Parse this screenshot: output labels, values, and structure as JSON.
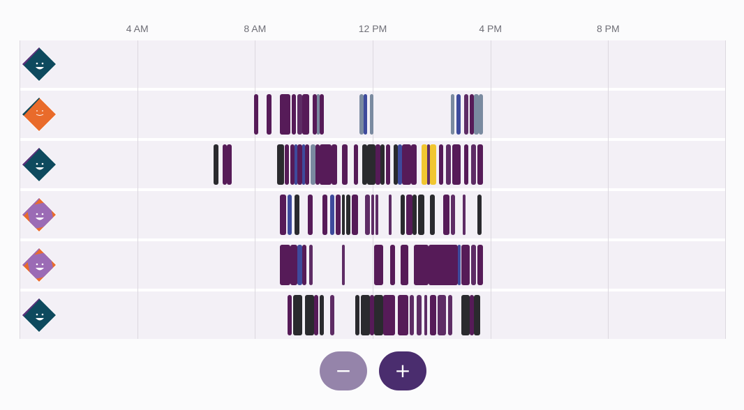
{
  "timeline": {
    "hour_labels": [
      {
        "hour": 4,
        "label": "4 AM"
      },
      {
        "hour": 8,
        "label": "8 AM"
      },
      {
        "hour": 12,
        "label": "12 PM"
      },
      {
        "hour": 16,
        "label": "4 PM"
      },
      {
        "hour": 20,
        "label": "8 PM"
      }
    ],
    "colors": {
      "plum": "#561b58",
      "purple": "#5e2c65",
      "dark": "#2a2a2e",
      "blue": "#3e4a9c",
      "slate": "#7a8aa0",
      "yellow": "#f1c630"
    },
    "rows": [
      {
        "avatar": {
          "base": "#0e4a5e",
          "accent": "#5a2f7a",
          "face": "teal"
        },
        "segments": []
      },
      {
        "avatar": {
          "base": "#e96b2b",
          "accent": "#0e4a5e",
          "face": "orange"
        },
        "segments": [
          {
            "start": 7.98,
            "end": 8.12,
            "color": "plum"
          },
          {
            "start": 8.4,
            "end": 8.55,
            "color": "plum"
          },
          {
            "start": 8.85,
            "end": 9.2,
            "color": "plum"
          },
          {
            "start": 9.25,
            "end": 9.4,
            "color": "plum"
          },
          {
            "start": 9.45,
            "end": 9.6,
            "color": "purple"
          },
          {
            "start": 9.6,
            "end": 9.85,
            "color": "plum"
          },
          {
            "start": 9.95,
            "end": 10.1,
            "color": "plum"
          },
          {
            "start": 10.1,
            "end": 10.2,
            "color": "slate"
          },
          {
            "start": 10.2,
            "end": 10.35,
            "color": "plum"
          },
          {
            "start": 11.55,
            "end": 11.7,
            "color": "slate"
          },
          {
            "start": 11.7,
            "end": 11.8,
            "color": "blue"
          },
          {
            "start": 11.9,
            "end": 12.02,
            "color": "slate"
          },
          {
            "start": 14.65,
            "end": 14.78,
            "color": "slate"
          },
          {
            "start": 14.85,
            "end": 14.98,
            "color": "blue"
          },
          {
            "start": 15.1,
            "end": 15.25,
            "color": "purple"
          },
          {
            "start": 15.3,
            "end": 15.45,
            "color": "plum"
          },
          {
            "start": 15.45,
            "end": 15.6,
            "color": "slate"
          },
          {
            "start": 15.6,
            "end": 15.75,
            "color": "slate"
          }
        ]
      },
      {
        "avatar": {
          "base": "#0e4a5e",
          "accent": "#5a2f7a",
          "face": "teal"
        },
        "segments": [
          {
            "start": 6.6,
            "end": 6.75,
            "color": "dark"
          },
          {
            "start": 6.9,
            "end": 7.05,
            "color": "plum"
          },
          {
            "start": 7.05,
            "end": 7.2,
            "color": "plum"
          },
          {
            "start": 8.75,
            "end": 9.0,
            "color": "dark"
          },
          {
            "start": 9.0,
            "end": 9.15,
            "color": "plum"
          },
          {
            "start": 9.2,
            "end": 9.35,
            "color": "plum"
          },
          {
            "start": 9.35,
            "end": 9.45,
            "color": "blue"
          },
          {
            "start": 9.45,
            "end": 9.6,
            "color": "plum"
          },
          {
            "start": 9.6,
            "end": 9.7,
            "color": "blue"
          },
          {
            "start": 9.7,
            "end": 9.85,
            "color": "plum"
          },
          {
            "start": 9.9,
            "end": 10.05,
            "color": "slate"
          },
          {
            "start": 10.05,
            "end": 10.2,
            "color": "plum"
          },
          {
            "start": 10.2,
            "end": 10.6,
            "color": "plum"
          },
          {
            "start": 10.6,
            "end": 10.8,
            "color": "plum"
          },
          {
            "start": 10.95,
            "end": 11.15,
            "color": "plum"
          },
          {
            "start": 11.35,
            "end": 11.5,
            "color": "plum"
          },
          {
            "start": 11.65,
            "end": 11.8,
            "color": "dark"
          },
          {
            "start": 11.8,
            "end": 12.1,
            "color": "dark"
          },
          {
            "start": 12.1,
            "end": 12.25,
            "color": "plum"
          },
          {
            "start": 12.25,
            "end": 12.4,
            "color": "dark"
          },
          {
            "start": 12.45,
            "end": 12.6,
            "color": "plum"
          },
          {
            "start": 12.7,
            "end": 12.85,
            "color": "dark"
          },
          {
            "start": 12.85,
            "end": 13.0,
            "color": "blue"
          },
          {
            "start": 13.0,
            "end": 13.3,
            "color": "plum"
          },
          {
            "start": 13.3,
            "end": 13.5,
            "color": "plum"
          },
          {
            "start": 13.65,
            "end": 13.85,
            "color": "yellow"
          },
          {
            "start": 13.85,
            "end": 13.95,
            "color": "purple"
          },
          {
            "start": 13.95,
            "end": 14.15,
            "color": "yellow"
          },
          {
            "start": 14.25,
            "end": 14.4,
            "color": "plum"
          },
          {
            "start": 14.5,
            "end": 14.65,
            "color": "purple"
          },
          {
            "start": 14.7,
            "end": 15.0,
            "color": "plum"
          },
          {
            "start": 15.1,
            "end": 15.25,
            "color": "plum"
          },
          {
            "start": 15.35,
            "end": 15.5,
            "color": "purple"
          },
          {
            "start": 15.55,
            "end": 15.75,
            "color": "plum"
          }
        ]
      },
      {
        "avatar": {
          "base": "#e96b2b",
          "accent": "#9b6bb5",
          "face": "lavender"
        },
        "segments": [
          {
            "start": 8.85,
            "end": 9.05,
            "color": "plum"
          },
          {
            "start": 9.1,
            "end": 9.25,
            "color": "blue"
          },
          {
            "start": 9.35,
            "end": 9.5,
            "color": "dark"
          },
          {
            "start": 9.8,
            "end": 9.95,
            "color": "plum"
          },
          {
            "start": 10.3,
            "end": 10.45,
            "color": "plum"
          },
          {
            "start": 10.55,
            "end": 10.7,
            "color": "blue"
          },
          {
            "start": 10.75,
            "end": 10.9,
            "color": "plum"
          },
          {
            "start": 10.95,
            "end": 11.05,
            "color": "dark"
          },
          {
            "start": 11.1,
            "end": 11.25,
            "color": "dark"
          },
          {
            "start": 11.3,
            "end": 11.5,
            "color": "plum"
          },
          {
            "start": 11.75,
            "end": 11.9,
            "color": "purple"
          },
          {
            "start": 11.95,
            "end": 12.05,
            "color": "purple"
          },
          {
            "start": 12.1,
            "end": 12.2,
            "color": "purple"
          },
          {
            "start": 12.55,
            "end": 12.65,
            "color": "purple"
          },
          {
            "start": 12.95,
            "end": 13.1,
            "color": "dark"
          },
          {
            "start": 13.15,
            "end": 13.35,
            "color": "plum"
          },
          {
            "start": 13.35,
            "end": 13.5,
            "color": "dark"
          },
          {
            "start": 13.55,
            "end": 13.75,
            "color": "dark"
          },
          {
            "start": 13.95,
            "end": 14.1,
            "color": "dark"
          },
          {
            "start": 14.4,
            "end": 14.6,
            "color": "plum"
          },
          {
            "start": 14.65,
            "end": 14.8,
            "color": "purple"
          },
          {
            "start": 15.05,
            "end": 15.15,
            "color": "purple"
          },
          {
            "start": 15.55,
            "end": 15.7,
            "color": "dark"
          }
        ]
      },
      {
        "avatar": {
          "base": "#e96b2b",
          "accent": "#9b6bb5",
          "face": "lavender"
        },
        "segments": [
          {
            "start": 8.85,
            "end": 9.2,
            "color": "plum"
          },
          {
            "start": 9.2,
            "end": 9.45,
            "color": "plum"
          },
          {
            "start": 9.45,
            "end": 9.6,
            "color": "blue"
          },
          {
            "start": 9.6,
            "end": 9.75,
            "color": "plum"
          },
          {
            "start": 9.85,
            "end": 9.95,
            "color": "purple"
          },
          {
            "start": 10.95,
            "end": 11.05,
            "color": "purple"
          },
          {
            "start": 12.05,
            "end": 12.35,
            "color": "plum"
          },
          {
            "start": 12.6,
            "end": 12.75,
            "color": "plum"
          },
          {
            "start": 12.95,
            "end": 13.2,
            "color": "plum"
          },
          {
            "start": 13.4,
            "end": 13.9,
            "color": "plum"
          },
          {
            "start": 13.9,
            "end": 14.9,
            "color": "plum"
          },
          {
            "start": 14.9,
            "end": 15.0,
            "color": "blue"
          },
          {
            "start": 15.0,
            "end": 15.3,
            "color": "plum"
          },
          {
            "start": 15.35,
            "end": 15.5,
            "color": "purple"
          },
          {
            "start": 15.55,
            "end": 15.75,
            "color": "plum"
          }
        ]
      },
      {
        "avatar": {
          "base": "#0e4a5e",
          "accent": "#5a2f7a",
          "face": "teal"
        },
        "segments": [
          {
            "start": 9.1,
            "end": 9.25,
            "color": "plum"
          },
          {
            "start": 9.3,
            "end": 9.6,
            "color": "dark"
          },
          {
            "start": 9.7,
            "end": 10.0,
            "color": "dark"
          },
          {
            "start": 10.0,
            "end": 10.15,
            "color": "plum"
          },
          {
            "start": 10.2,
            "end": 10.35,
            "color": "dark"
          },
          {
            "start": 10.55,
            "end": 10.7,
            "color": "purple"
          },
          {
            "start": 11.4,
            "end": 11.55,
            "color": "dark"
          },
          {
            "start": 11.6,
            "end": 11.9,
            "color": "dark"
          },
          {
            "start": 11.9,
            "end": 12.05,
            "color": "plum"
          },
          {
            "start": 12.05,
            "end": 12.35,
            "color": "dark"
          },
          {
            "start": 12.35,
            "end": 12.75,
            "color": "plum"
          },
          {
            "start": 12.85,
            "end": 13.2,
            "color": "plum"
          },
          {
            "start": 13.25,
            "end": 13.4,
            "color": "purple"
          },
          {
            "start": 13.5,
            "end": 13.65,
            "color": "purple"
          },
          {
            "start": 13.75,
            "end": 13.85,
            "color": "purple"
          },
          {
            "start": 13.95,
            "end": 14.15,
            "color": "plum"
          },
          {
            "start": 14.2,
            "end": 14.5,
            "color": "purple"
          },
          {
            "start": 14.55,
            "end": 14.7,
            "color": "purple"
          },
          {
            "start": 15.0,
            "end": 15.3,
            "color": "dark"
          },
          {
            "start": 15.3,
            "end": 15.45,
            "color": "plum"
          },
          {
            "start": 15.45,
            "end": 15.65,
            "color": "dark"
          }
        ]
      }
    ]
  },
  "controls": {
    "zoom_out_label": "−",
    "zoom_in_label": "+"
  }
}
